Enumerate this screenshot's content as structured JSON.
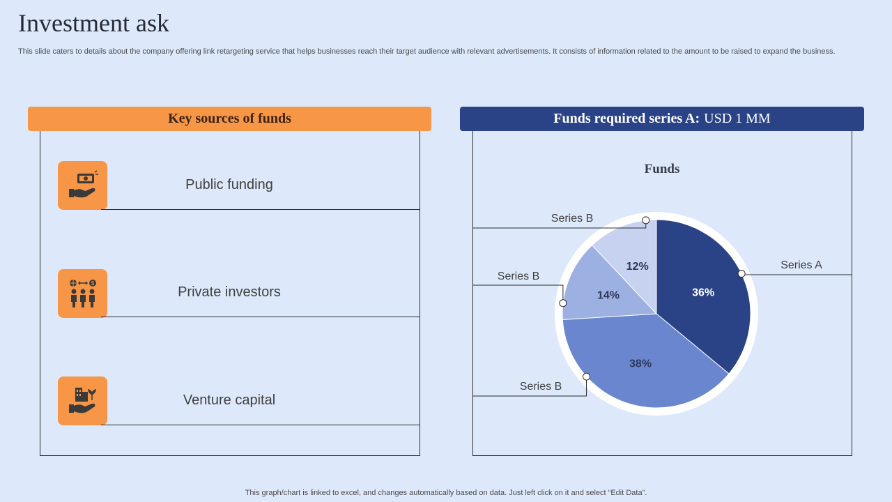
{
  "page": {
    "title": "Investment ask",
    "subtitle": "This slide caters to details about the company offering link retargeting service that helps businesses reach their target audience with relevant advertisements. It consists of information related to the amount to be raised to expand the business.",
    "footer": "This graph/chart is linked to excel, and changes automatically based on data. Just left click on it and select “Edit Data”."
  },
  "left_panel": {
    "header": "Key sources of funds",
    "items": [
      {
        "label": "Public funding",
        "icon": "cash-in-hand-icon"
      },
      {
        "label": "Private investors",
        "icon": "investors-exchange-icon"
      },
      {
        "label": "Venture capital",
        "icon": "buildings-in-hand-icon"
      }
    ]
  },
  "right_panel": {
    "header_bold": "Funds required  series A:",
    "header_value": "USD 1 MM"
  },
  "colors": {
    "orange": "#f79646",
    "navy": "#2a4387",
    "slice_a": "#2a4387",
    "slice_38": "#6a86cf",
    "slice_14": "#9db0e2",
    "slice_12": "#c6d2ef"
  },
  "chart_data": {
    "type": "pie",
    "title": "Funds",
    "slices": [
      {
        "series": "Series A",
        "value": 36,
        "label": "36%"
      },
      {
        "series": "Series B",
        "value": 38,
        "label": "38%"
      },
      {
        "series": "Series B",
        "value": 14,
        "label": "14%"
      },
      {
        "series": "Series B",
        "value": 12,
        "label": "12%"
      }
    ]
  }
}
